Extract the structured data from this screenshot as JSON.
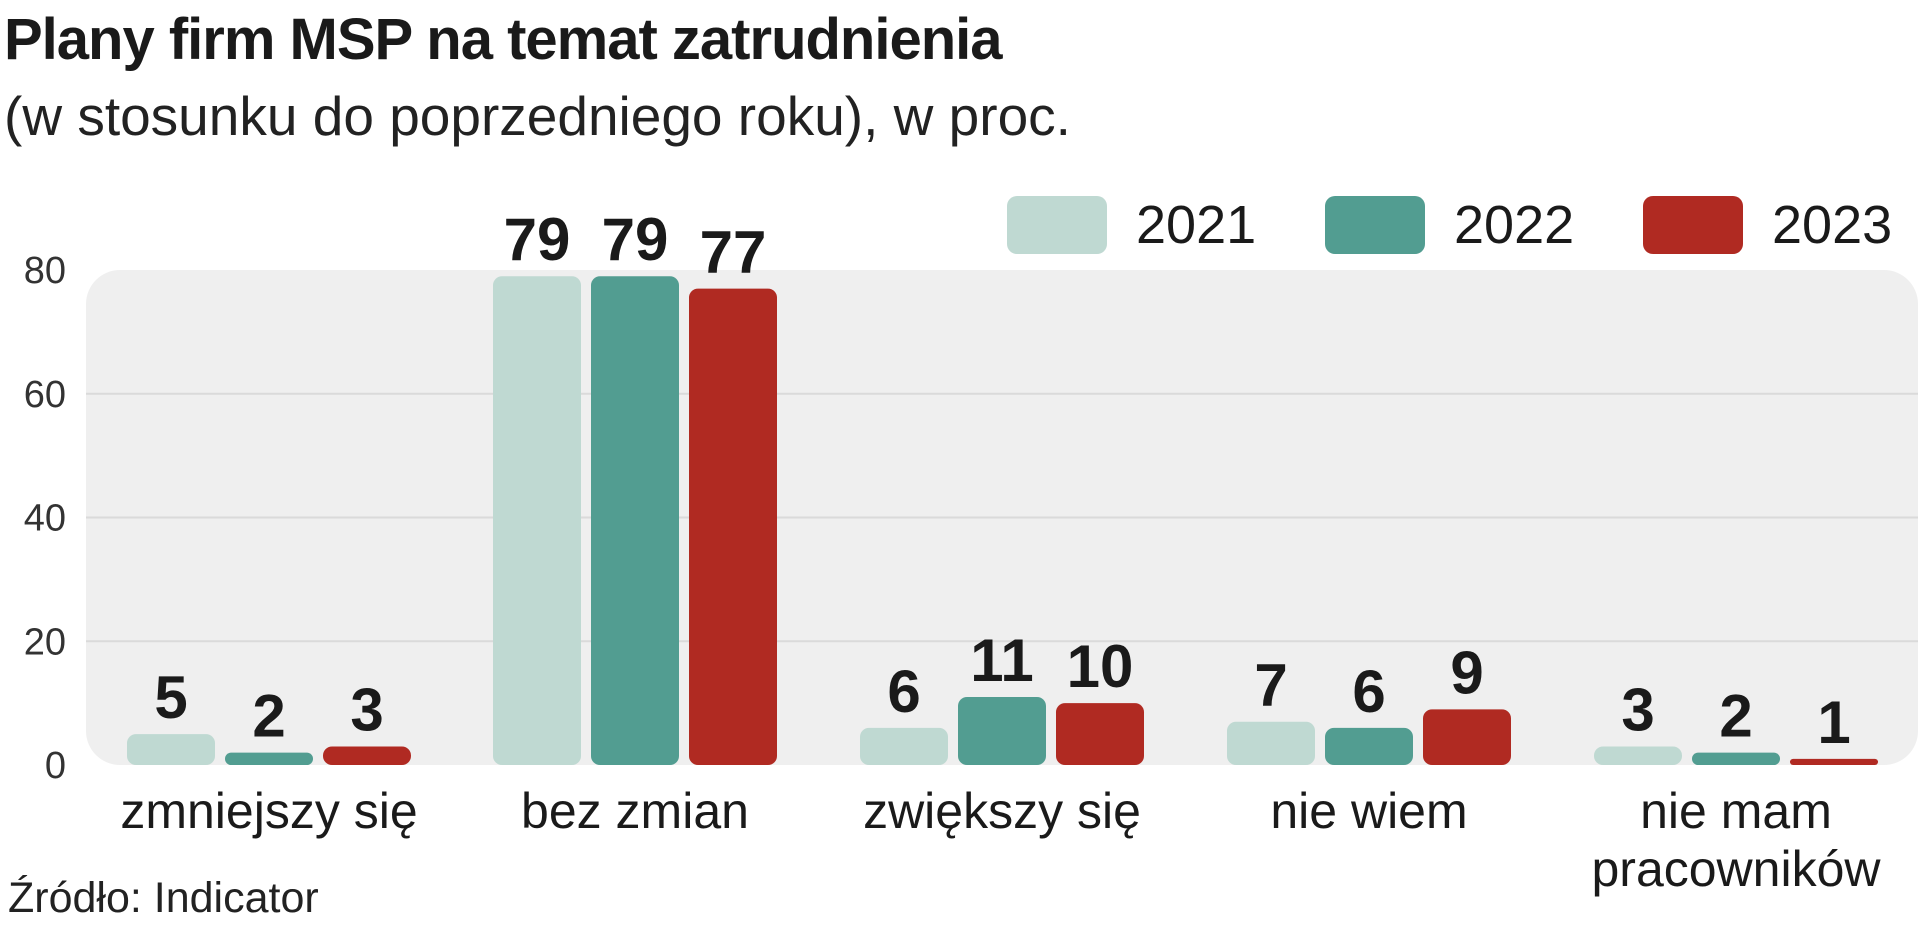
{
  "header": {
    "title": "Plany firm MSP na temat zatrudnienia",
    "subtitle": "(w stosunku do poprzedniego roku), w proc."
  },
  "footer": {
    "source": "Źródło: Indicator"
  },
  "colors": {
    "series_2021": "#bfd9d2",
    "series_2022": "#529d91",
    "series_2023": "#b02a22",
    "plot_background": "#efefef",
    "gridline": "#dadada"
  },
  "chart_data": {
    "type": "bar",
    "title": "Plany firm MSP na temat zatrudnienia",
    "subtitle": "(w stosunku do poprzedniego roku), w proc.",
    "xlabel": "",
    "ylabel": "",
    "ylim": [
      0,
      80
    ],
    "yticks": [
      "0",
      "20",
      "40",
      "60",
      "80"
    ],
    "ytick_values": [
      0,
      20,
      40,
      60,
      80
    ],
    "grid": true,
    "legend_position": "top-right",
    "categories": [
      [
        "zmniejszy się"
      ],
      [
        "bez zmian"
      ],
      [
        "zwiększy się"
      ],
      [
        "nie wiem"
      ],
      [
        "nie mam",
        "pracowników"
      ]
    ],
    "series": [
      {
        "name": "2021",
        "color": "#bfd9d2",
        "values": [
          5,
          79,
          6,
          7,
          3
        ]
      },
      {
        "name": "2022",
        "color": "#529d91",
        "values": [
          2,
          79,
          11,
          6,
          2
        ]
      },
      {
        "name": "2023",
        "color": "#b02a22",
        "values": [
          3,
          77,
          10,
          9,
          1
        ]
      }
    ]
  }
}
